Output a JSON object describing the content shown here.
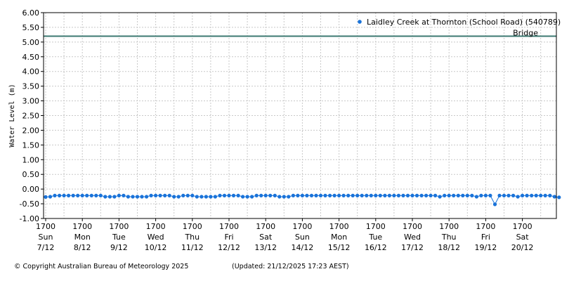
{
  "chart_data": {
    "type": "line",
    "ylabel": "Water Level (m)",
    "ylim": [
      -1.0,
      6.0
    ],
    "y_ticks": [
      "6.00",
      "5.50",
      "5.00",
      "4.50",
      "4.00",
      "3.50",
      "3.00",
      "2.50",
      "2.00",
      "1.50",
      "1.00",
      "0.50",
      "0.00",
      "-0.50",
      "-1.00"
    ],
    "grid": true,
    "x_start_date": "2025-12-07 17:00",
    "x_end_date": "2025-12-21 17:23",
    "x_ticks": [
      {
        "time": "1700",
        "day": "Sun",
        "date": "7/12"
      },
      {
        "time": "1700",
        "day": "Mon",
        "date": "8/12"
      },
      {
        "time": "1700",
        "day": "Tue",
        "date": "9/12"
      },
      {
        "time": "1700",
        "day": "Wed",
        "date": "10/12"
      },
      {
        "time": "1700",
        "day": "Thu",
        "date": "11/12"
      },
      {
        "time": "1700",
        "day": "Fri",
        "date": "12/12"
      },
      {
        "time": "1700",
        "day": "Sat",
        "date": "13/12"
      },
      {
        "time": "1700",
        "day": "Sun",
        "date": "14/12"
      },
      {
        "time": "1700",
        "day": "Mon",
        "date": "15/12"
      },
      {
        "time": "1700",
        "day": "Tue",
        "date": "16/12"
      },
      {
        "time": "1700",
        "day": "Wed",
        "date": "17/12"
      },
      {
        "time": "1700",
        "day": "Thu",
        "date": "18/12"
      },
      {
        "time": "1700",
        "day": "Fri",
        "date": "19/12"
      },
      {
        "time": "1700",
        "day": "Sat",
        "date": "20/12"
      }
    ],
    "series": [
      {
        "name": "Laidley Creek at Thornton (School Road) (540789)",
        "color": "#1a73d9",
        "x": [
          "7/12 17:00",
          "7/12 20:00",
          "7/12 23:00",
          "8/12 02:00",
          "8/12 05:00",
          "8/12 08:00",
          "8/12 11:00",
          "8/12 14:00",
          "8/12 17:00",
          "8/12 20:00",
          "8/12 23:00",
          "9/12 02:00",
          "9/12 05:00",
          "9/12 08:00",
          "9/12 11:00",
          "9/12 14:00",
          "9/12 17:00",
          "9/12 20:00",
          "9/12 23:00",
          "10/12 02:00",
          "10/12 05:00",
          "10/12 08:00",
          "10/12 11:00",
          "10/12 14:00",
          "10/12 17:00",
          "10/12 20:00",
          "10/12 23:00",
          "11/12 02:00",
          "11/12 05:00",
          "11/12 08:00",
          "11/12 11:00",
          "11/12 14:00",
          "11/12 17:00",
          "11/12 20:00",
          "11/12 23:00",
          "12/12 02:00",
          "12/12 05:00",
          "12/12 08:00",
          "12/12 11:00",
          "12/12 14:00",
          "12/12 17:00",
          "12/12 20:00",
          "12/12 23:00",
          "13/12 02:00",
          "13/12 05:00",
          "13/12 08:00",
          "13/12 11:00",
          "13/12 14:00",
          "13/12 17:00",
          "13/12 20:00",
          "13/12 23:00",
          "14/12 02:00",
          "14/12 05:00",
          "14/12 08:00",
          "14/12 11:00",
          "14/12 14:00",
          "14/12 17:00",
          "14/12 20:00",
          "14/12 23:00",
          "15/12 02:00",
          "15/12 05:00",
          "15/12 08:00",
          "15/12 11:00",
          "15/12 14:00",
          "15/12 17:00",
          "15/12 20:00",
          "15/12 23:00",
          "16/12 02:00",
          "16/12 05:00",
          "16/12 08:00",
          "16/12 11:00",
          "16/12 14:00",
          "16/12 17:00",
          "16/12 20:00",
          "16/12 23:00",
          "17/12 02:00",
          "17/12 05:00",
          "17/12 08:00",
          "17/12 11:00",
          "17/12 14:00",
          "17/12 17:00",
          "17/12 20:00",
          "17/12 23:00",
          "18/12 02:00",
          "18/12 05:00",
          "18/12 08:00",
          "18/12 11:00",
          "18/12 14:00",
          "18/12 17:00",
          "18/12 20:00",
          "18/12 23:00",
          "19/12 02:00",
          "19/12 05:00",
          "19/12 08:00",
          "19/12 11:00",
          "19/12 14:00",
          "19/12 17:00",
          "19/12 20:00",
          "19/12 23:00",
          "20/12 02:00",
          "20/12 05:00",
          "20/12 08:00",
          "20/12 11:00",
          "20/12 14:00",
          "20/12 17:00",
          "20/12 20:00",
          "20/12 23:00",
          "21/12 02:00",
          "21/12 05:00",
          "21/12 08:00",
          "21/12 11:00",
          "21/12 14:00",
          "21/12 17:00"
        ],
        "values": [
          -0.27,
          -0.26,
          -0.22,
          -0.22,
          -0.22,
          -0.22,
          -0.22,
          -0.22,
          -0.22,
          -0.22,
          -0.22,
          -0.22,
          -0.22,
          -0.26,
          -0.26,
          -0.26,
          -0.22,
          -0.22,
          -0.26,
          -0.26,
          -0.26,
          -0.26,
          -0.26,
          -0.22,
          -0.22,
          -0.22,
          -0.22,
          -0.22,
          -0.26,
          -0.26,
          -0.22,
          -0.22,
          -0.22,
          -0.26,
          -0.26,
          -0.26,
          -0.26,
          -0.26,
          -0.22,
          -0.22,
          -0.22,
          -0.22,
          -0.22,
          -0.26,
          -0.26,
          -0.26,
          -0.22,
          -0.22,
          -0.22,
          -0.22,
          -0.22,
          -0.26,
          -0.26,
          -0.26,
          -0.22,
          -0.22,
          -0.22,
          -0.22,
          -0.22,
          -0.22,
          -0.22,
          -0.22,
          -0.22,
          -0.22,
          -0.22,
          -0.22,
          -0.22,
          -0.22,
          -0.22,
          -0.22,
          -0.22,
          -0.22,
          -0.22,
          -0.22,
          -0.22,
          -0.22,
          -0.22,
          -0.22,
          -0.22,
          -0.22,
          -0.22,
          -0.22,
          -0.22,
          -0.22,
          -0.22,
          -0.22,
          -0.26,
          -0.22,
          -0.22,
          -0.22,
          -0.22,
          -0.22,
          -0.22,
          -0.22,
          -0.26,
          -0.22,
          -0.22,
          -0.22,
          -0.52,
          -0.22,
          -0.22,
          -0.22,
          -0.22,
          -0.26,
          -0.22,
          -0.22,
          -0.22,
          -0.22,
          -0.22,
          -0.22,
          -0.22,
          -0.26,
          -0.28
        ]
      }
    ],
    "reference_lines": [
      {
        "label": "Bridge",
        "value": 5.2,
        "color": "#3d7a72"
      }
    ],
    "legend_placement": "top-right"
  },
  "footer": {
    "copyright": "© Copyright Australian Bureau of Meteorology 2025",
    "updated": "(Updated: 21/12/2025 17:23 AEST)"
  }
}
